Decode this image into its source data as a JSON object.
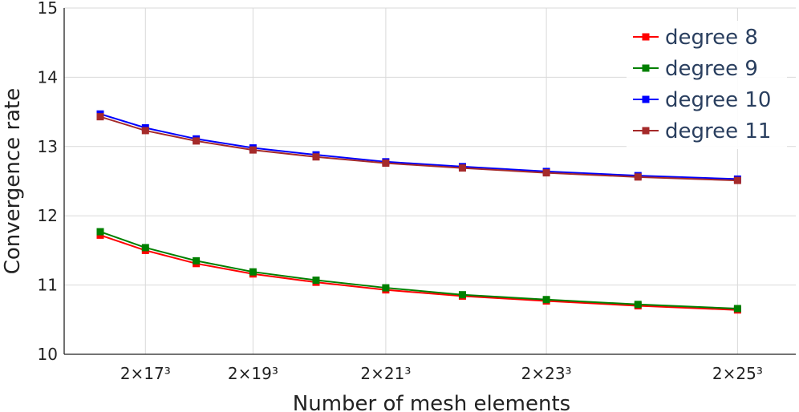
{
  "chart_data": {
    "type": "line",
    "xlabel": "Number of mesh elements",
    "ylabel": "Convergence rate",
    "x_scale": "cube",
    "x_ticks": [
      {
        "n": 17,
        "label": "2×17³"
      },
      {
        "n": 19,
        "label": "2×19³"
      },
      {
        "n": 21,
        "label": "2×21³"
      },
      {
        "n": 23,
        "label": "2×23³"
      },
      {
        "n": 25,
        "label": "2×25³"
      }
    ],
    "xlim_n": [
      15.1,
      25.55
    ],
    "ylim": [
      10,
      15
    ],
    "y_ticks": [
      {
        "value": 10,
        "label": "10"
      },
      {
        "value": 11,
        "label": "11"
      },
      {
        "value": 12,
        "label": "12"
      },
      {
        "value": 13,
        "label": "13"
      },
      {
        "value": 14,
        "label": "14"
      },
      {
        "value": 15,
        "label": "15"
      }
    ],
    "grid": true,
    "legend_position": "top-right",
    "x_n": [
      16,
      17,
      18,
      19,
      20,
      21,
      22,
      23,
      24,
      25
    ],
    "series": [
      {
        "name": "degree 8",
        "color": "#ff0000",
        "values": [
          11.72,
          11.5,
          11.31,
          11.16,
          11.04,
          10.93,
          10.84,
          10.77,
          10.7,
          10.64
        ]
      },
      {
        "name": "degree 9",
        "color": "#008000",
        "values": [
          11.77,
          11.54,
          11.35,
          11.19,
          11.07,
          10.96,
          10.86,
          10.79,
          10.72,
          10.66
        ]
      },
      {
        "name": "degree 10",
        "color": "#0000ff",
        "values": [
          13.47,
          13.27,
          13.11,
          12.98,
          12.88,
          12.78,
          12.71,
          12.64,
          12.58,
          12.53
        ]
      },
      {
        "name": "degree 11",
        "color": "#a52a2a",
        "values": [
          13.43,
          13.23,
          13.08,
          12.95,
          12.85,
          12.76,
          12.69,
          12.62,
          12.56,
          12.51
        ]
      }
    ]
  }
}
